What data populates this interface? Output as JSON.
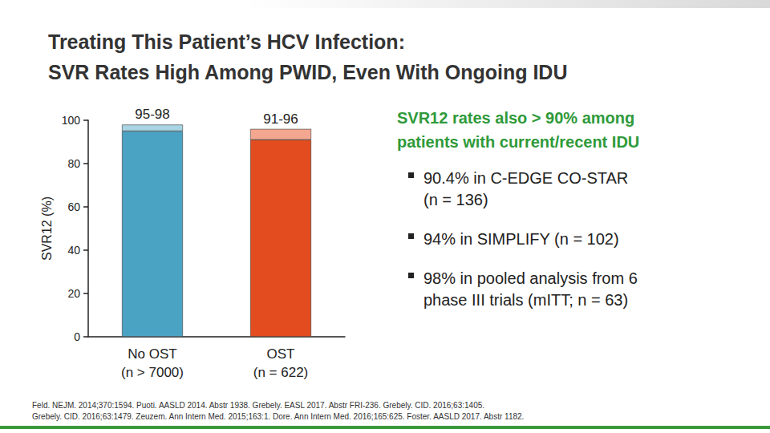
{
  "chart_data": {
    "type": "bar",
    "title": "Treating This Patient’s HCV Infection:\nSVR Rates High Among PWID, Even With Ongoing IDU",
    "y_label": "SVR12 (%)",
    "categories": [
      "No OST\n(n > 7000)",
      "OST\n(n = 622)"
    ],
    "series": [
      {
        "colors": [
          "#4ba3c3",
          "#e24c1f"
        ],
        "values": [
          95,
          91
        ]
      },
      {
        "colors": [
          "#a9d4e6",
          "#f3a791"
        ],
        "values": [
          3,
          5
        ]
      }
    ],
    "bar_annotations": [
      "95-98",
      "91-96"
    ],
    "stacked": true,
    "ylim": [
      0,
      100
    ],
    "yticks": [
      0,
      20,
      40,
      60,
      80,
      100
    ],
    "grid": false
  },
  "side_text": {
    "heading": "SVR12 rates also > 90% among\npatients with current/recent IDU",
    "bullets": [
      "90.4% in C-EDGE CO-STAR\n(n = 136)",
      "94% in SIMPLIFY (n = 102)",
      "98% in pooled analysis from 6\nphase III trials (mITT; n = 63)"
    ]
  },
  "footnote": [
    "Feld. NEJM. 2014;370:1594. Puoti. AASLD 2014. Abstr 1938. Grebely. EASL 2017. Abstr FRI-236. Grebely. CID. 2016;63:1405.",
    "Grebely. CID. 2016;63:1479. Zeuzem. Ann Intern Med. 2015;163:1. Dore. Ann Intern Med. 2016;165:625. Foster. AASLD 2017. Abstr 1182."
  ]
}
